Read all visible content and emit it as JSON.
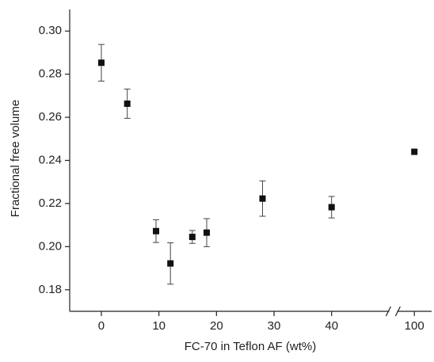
{
  "chart_data": {
    "type": "scatter",
    "x_label": "FC-70 in Teflon AF (wt%)",
    "y_label": "Fractional free volume",
    "x": [
      0,
      4.5,
      9.5,
      12,
      15.8,
      18.3,
      28,
      40,
      100
    ],
    "values": [
      0.2853,
      0.2663,
      0.2072,
      0.1922,
      0.2045,
      0.2065,
      0.2223,
      0.2183,
      0.244
    ],
    "errors": [
      0.0085,
      0.0068,
      0.0053,
      0.0096,
      0.003,
      0.0065,
      0.0082,
      0.005,
      null
    ],
    "color": "#111111",
    "marker": "square",
    "xlim": [
      -5.5,
      103
    ],
    "xbreak": [
      50,
      97
    ],
    "xticks": [
      0,
      10,
      20,
      30,
      40,
      100
    ],
    "ylim": [
      0.17,
      0.31
    ],
    "yticks": [
      0.18,
      {
        "value": 0.2,
        "label": "0.20"
      },
      0.22,
      0.24,
      0.26,
      0.28,
      {
        "value": 0.3,
        "label": "0.30"
      }
    ]
  }
}
